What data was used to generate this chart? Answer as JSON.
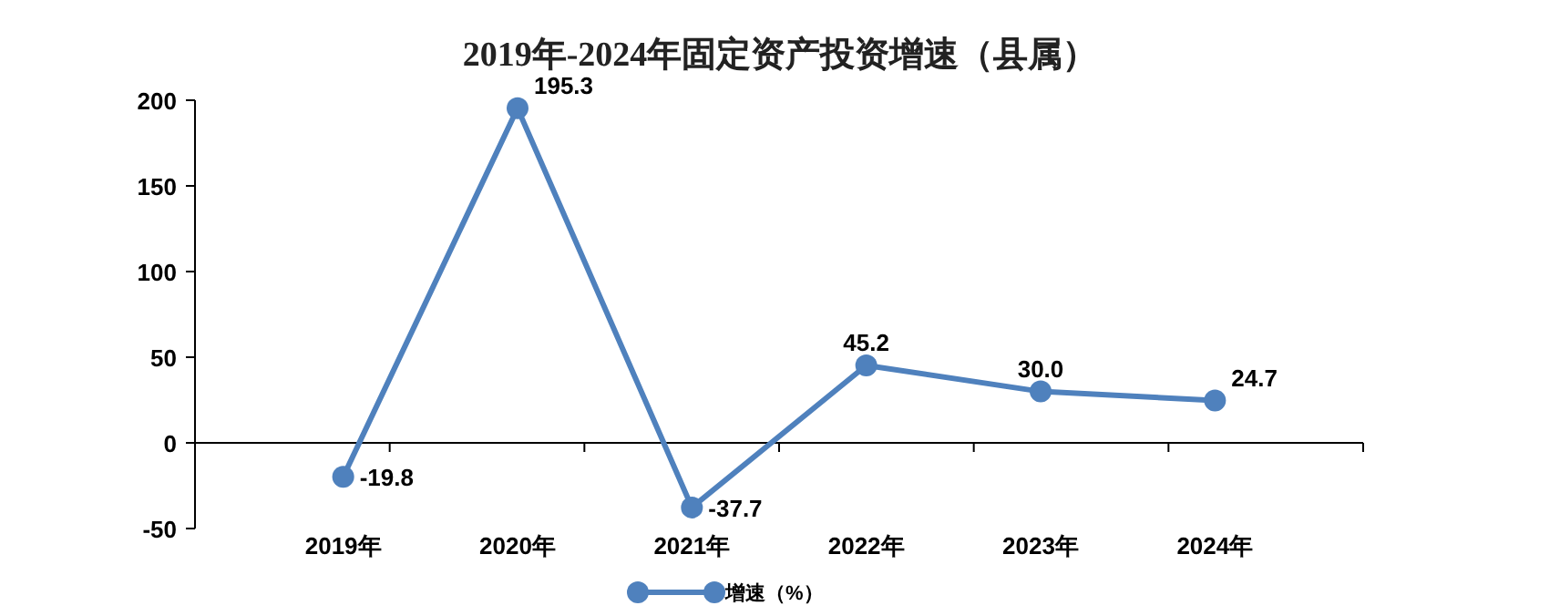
{
  "chart_data": {
    "type": "line",
    "title": "2019年-2024年固定资产投资增速（县属）",
    "categories": [
      "2019年",
      "2020年",
      "2021年",
      "2022年",
      "2023年",
      "2024年"
    ],
    "series": [
      {
        "name": "增速（%）",
        "color": "#4f81bd",
        "values": [
          -19.8,
          195.3,
          -37.7,
          45.2,
          30.0,
          24.7
        ],
        "value_labels": [
          "-19.8",
          "195.3",
          "-37.7",
          "45.2",
          "30.0",
          "24.7"
        ]
      }
    ],
    "ylim": [
      -50,
      200
    ],
    "yticks": [
      -50,
      0,
      50,
      100,
      150,
      200
    ],
    "legend": "bottom",
    "marker": "circle",
    "line_style": "solid"
  }
}
